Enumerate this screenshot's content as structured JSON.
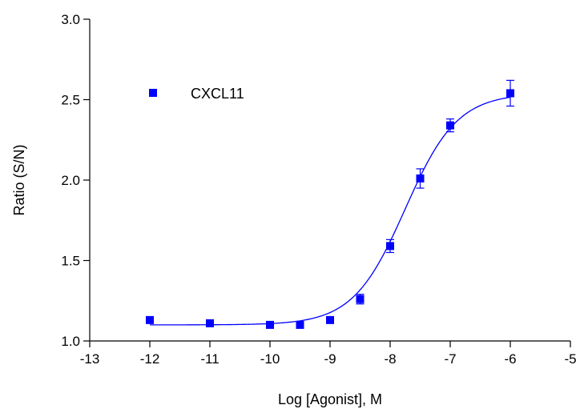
{
  "chart_data": {
    "type": "scatter",
    "title": "",
    "xlabel": "Log [Agonist], M",
    "ylabel": "Ratio (S/N)",
    "xlim": [
      -13,
      -5
    ],
    "ylim": [
      1.0,
      3.0
    ],
    "x_ticks": [
      -13,
      -12,
      -11,
      -10,
      -9,
      -8,
      -7,
      -6,
      -5
    ],
    "y_ticks": [
      1.0,
      1.5,
      2.0,
      2.5,
      3.0
    ],
    "x_tick_labels": [
      "-13",
      "-12",
      "-11",
      "-10",
      "-9",
      "-8",
      "-7",
      "-6",
      "-5"
    ],
    "y_tick_labels": [
      "1.0",
      "1.5",
      "2.0",
      "2.5",
      "3.0"
    ],
    "grid": false,
    "legend": {
      "placement": "top-left",
      "entries": [
        "CXCL11"
      ]
    },
    "color": "#0000ff",
    "series": [
      {
        "name": "CXCL11",
        "x": [
          -12,
          -11,
          -10,
          -9.5,
          -9,
          -8.5,
          -8,
          -7.5,
          -7,
          -6
        ],
        "y": [
          1.13,
          1.11,
          1.1,
          1.1,
          1.13,
          1.26,
          1.59,
          2.01,
          2.34,
          2.54
        ],
        "error": [
          0.02,
          0.01,
          0.01,
          0.01,
          0.02,
          0.03,
          0.04,
          0.06,
          0.04,
          0.08
        ],
        "fit": {
          "model": "sigmoidal dose-response",
          "bottom": 1.1,
          "top": 2.54,
          "logEC50": -7.75,
          "hill": 1.0
        }
      }
    ]
  }
}
